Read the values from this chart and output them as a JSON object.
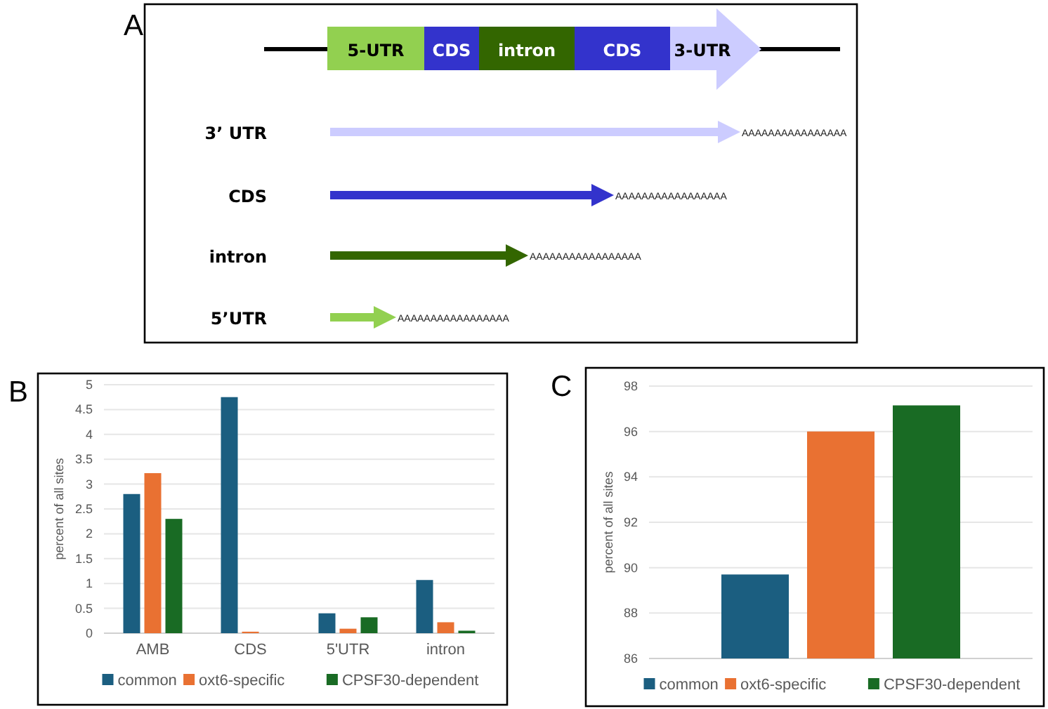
{
  "chart_data": [
    {
      "type": "other",
      "title": "A",
      "colors": [
        "#92d050",
        "#3333cc",
        "#336600",
        "#3333cc",
        "#ccccff"
      ],
      "annotations": [
        "5-UTR",
        "CDS",
        "intron",
        "CDS",
        "3-UTR",
        "3’ UTR",
        "CDS",
        "intron",
        "5’UTR",
        "AAAAAAAAAAAAAAAA",
        "AAAAAAAAAAAAAAAAA",
        "AAAAAAAAAAAAAAAAA",
        "AAAAAAAAAAAAAAAAA"
      ]
    },
    {
      "type": "bar",
      "title": "B",
      "ylabel": "percent of all sites",
      "categories": [
        "AMB",
        "CDS",
        "5'UTR",
        "intron"
      ],
      "series": [
        {
          "name": "common",
          "color": "#1b5e80",
          "values": [
            2.8,
            4.75,
            0.4,
            1.07
          ]
        },
        {
          "name": "oxt6-specific",
          "color": "#e97132",
          "values": [
            3.22,
            0.03,
            0.09,
            0.22
          ]
        },
        {
          "name": "CPSF30-dependent",
          "color": "#196b24",
          "values": [
            2.3,
            0,
            0.32,
            0.05
          ]
        }
      ],
      "ylim": [
        0,
        5
      ],
      "yticks": [
        0,
        0.5,
        1,
        1.5,
        2,
        2.5,
        3,
        3.5,
        4,
        4.5,
        5
      ],
      "grid": "y",
      "legend": "bottom"
    },
    {
      "type": "bar",
      "title": "C",
      "ylabel": "percent of all sites",
      "categories": [
        null
      ],
      "series": [
        {
          "name": "common",
          "color": "#1b5e80",
          "values": [
            89.7
          ]
        },
        {
          "name": "oxt6-specific",
          "color": "#e97132",
          "values": [
            96.0
          ]
        },
        {
          "name": "CPSF30-dependent",
          "color": "#196b24",
          "values": [
            97.15
          ]
        }
      ],
      "ylim": [
        86,
        98
      ],
      "yticks": [
        86,
        88,
        90,
        92,
        94,
        96,
        98
      ],
      "grid": "y",
      "legend": "bottom"
    }
  ]
}
